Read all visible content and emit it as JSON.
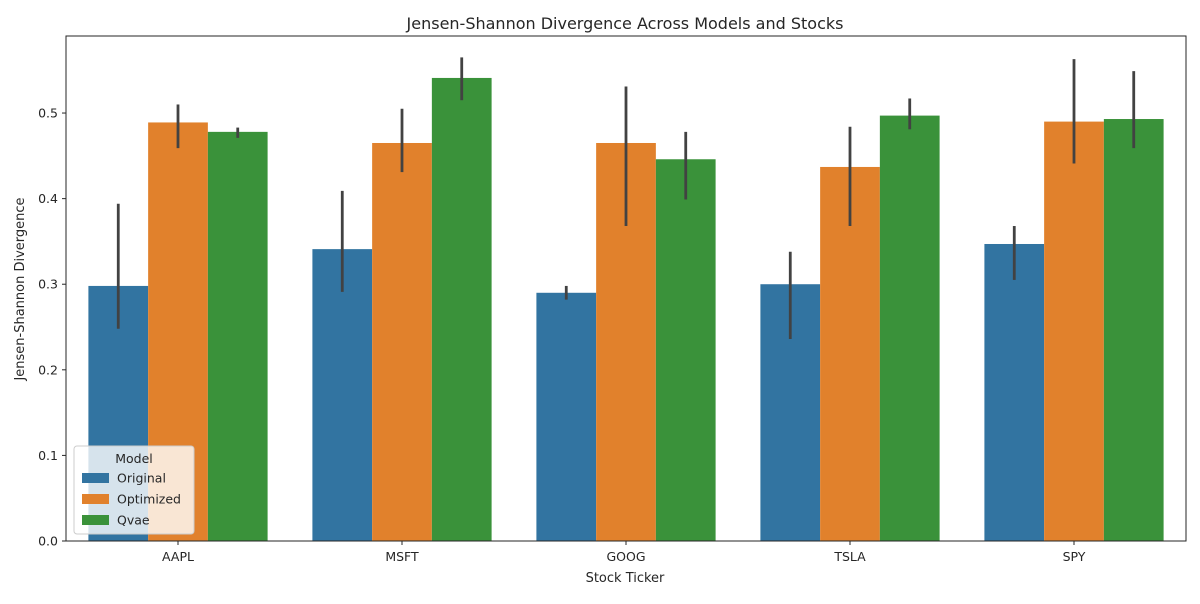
{
  "chart_data": {
    "type": "bar",
    "title": "Jensen-Shannon Divergence Across Models and Stocks",
    "xlabel": "Stock Ticker",
    "ylabel": "Jensen-Shannon Divergence",
    "categories": [
      "AAPL",
      "MSFT",
      "GOOG",
      "TSLA",
      "SPY"
    ],
    "ylim": [
      0,
      0.59
    ],
    "yticks": [
      0.0,
      0.1,
      0.2,
      0.3,
      0.4,
      0.5
    ],
    "ytick_labels": [
      "0.0",
      "0.1",
      "0.2",
      "0.3",
      "0.4",
      "0.5"
    ],
    "grid": false,
    "legend": {
      "title": "Model",
      "placement": "lower-left"
    },
    "series": [
      {
        "name": "Original",
        "color": "#3274a1",
        "values": [
          0.298,
          0.341,
          0.29,
          0.3,
          0.347
        ],
        "error_low": [
          0.248,
          0.291,
          0.282,
          0.236,
          0.305
        ],
        "error_high": [
          0.394,
          0.409,
          0.298,
          0.338,
          0.368
        ]
      },
      {
        "name": "Optimized",
        "color": "#e1812c",
        "values": [
          0.489,
          0.465,
          0.465,
          0.437,
          0.49
        ],
        "error_low": [
          0.459,
          0.431,
          0.368,
          0.368,
          0.441
        ],
        "error_high": [
          0.51,
          0.505,
          0.531,
          0.484,
          0.563
        ]
      },
      {
        "name": "Qvae",
        "color": "#3a923a",
        "values": [
          0.478,
          0.541,
          0.446,
          0.497,
          0.493
        ],
        "error_low": [
          0.471,
          0.515,
          0.399,
          0.481,
          0.459
        ],
        "error_high": [
          0.483,
          0.565,
          0.478,
          0.517,
          0.549
        ]
      }
    ]
  }
}
